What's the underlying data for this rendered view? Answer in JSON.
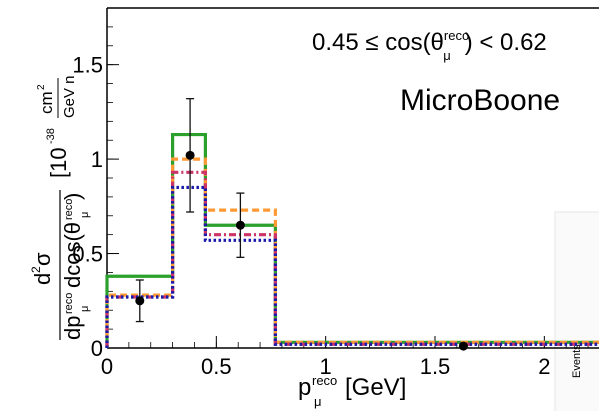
{
  "chart_data": {
    "type": "line",
    "title": "",
    "annotation": "0.45 ≤ cos(θ^reco_μ) < 0.62",
    "brand": "MicroBoone",
    "xlabel": "p^reco_μ [GeV]",
    "ylabel": "d²σ / dp^reco_μ dcos(θ^reco_μ) [10^-38 cm²/GeV n]",
    "xlim": [
      0,
      2.25
    ],
    "ylim": [
      0,
      1.8
    ],
    "x_ticks": [
      {
        "value": 0,
        "label": "0"
      },
      {
        "value": 0.5,
        "label": "0.5"
      },
      {
        "value": 1,
        "label": "1"
      },
      {
        "value": 1.5,
        "label": "1.5"
      },
      {
        "value": 2,
        "label": "2"
      }
    ],
    "y_ticks": [
      {
        "value": 0,
        "label": "0"
      },
      {
        "value": 0.5,
        "label": "0.5"
      },
      {
        "value": 1,
        "label": "1"
      },
      {
        "value": 1.5,
        "label": "1.5"
      }
    ],
    "bin_edges": [
      0,
      0.3,
      0.45,
      0.77,
      2.25
    ],
    "series": [
      {
        "style": "solid",
        "color": "#2ca02c",
        "values": [
          0.38,
          1.13,
          0.65,
          0.03
        ]
      },
      {
        "style": "dashed",
        "color": "#ff9933",
        "values": [
          0.28,
          1.0,
          0.73,
          0.03
        ]
      },
      {
        "style": "dashdot",
        "color": "#cc3366",
        "values": [
          0.27,
          0.93,
          0.6,
          0.02
        ]
      },
      {
        "style": "dotted",
        "color": "#1a1aaa",
        "values": [
          0.27,
          0.85,
          0.57,
          0.02
        ]
      }
    ],
    "data_points": [
      {
        "x": 0.15,
        "y": 0.25,
        "err": 0.11
      },
      {
        "x": 0.38,
        "y": 1.02,
        "err": 0.3
      },
      {
        "x": 0.61,
        "y": 0.65,
        "err": 0.17
      },
      {
        "x": 1.63,
        "y": 0.01,
        "err": 0.0
      }
    ],
    "inset_label": "Events"
  }
}
